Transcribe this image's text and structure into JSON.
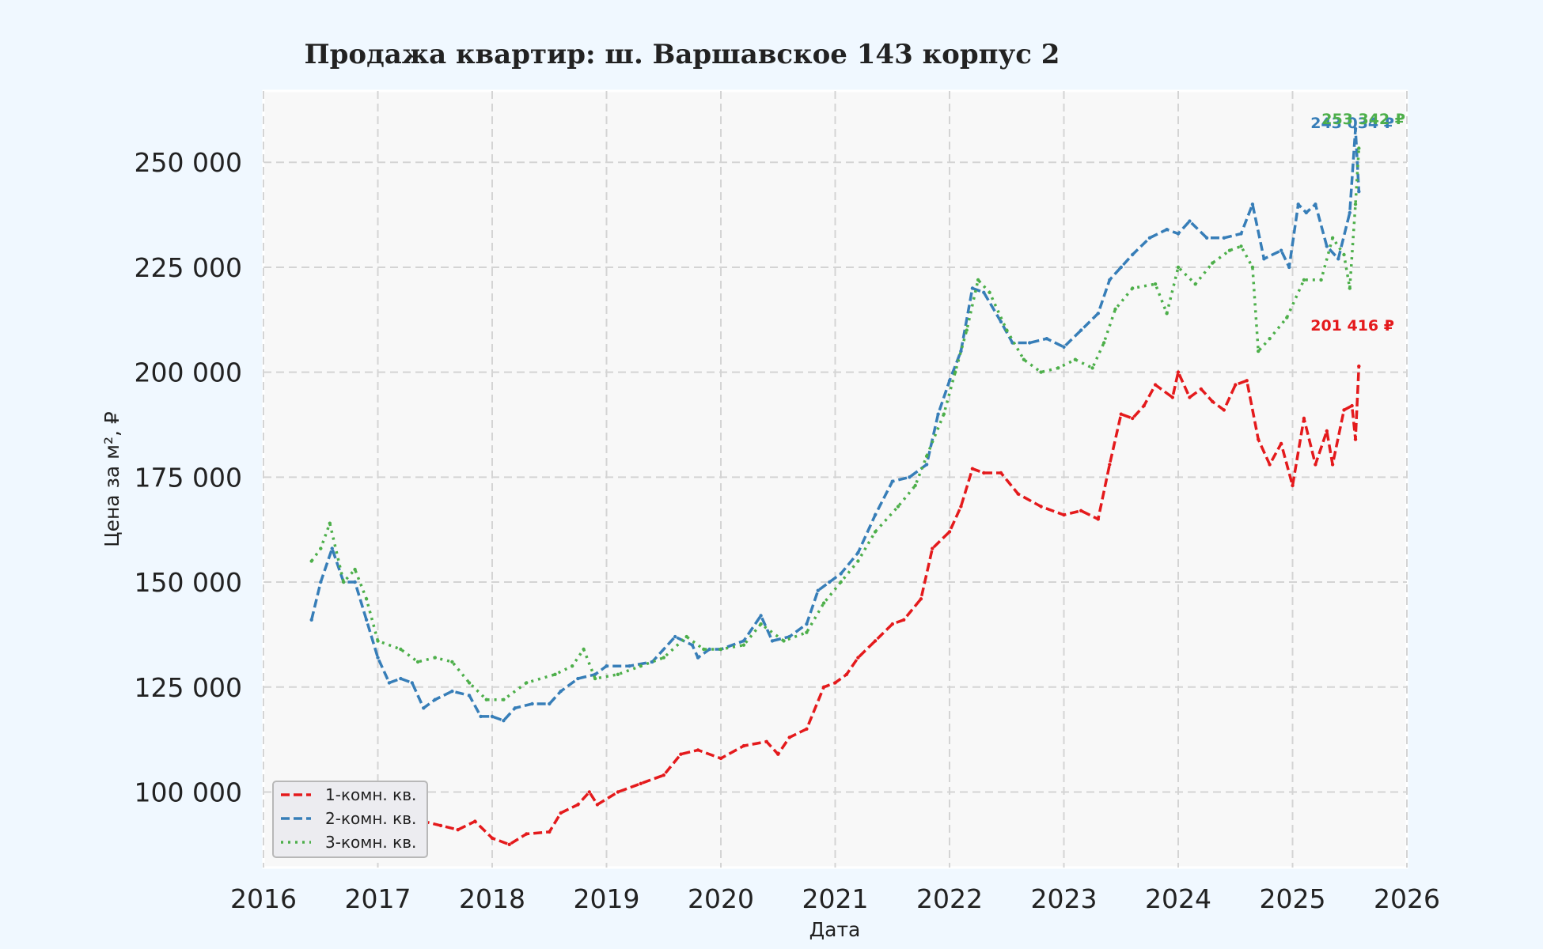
{
  "chart_data": {
    "type": "line",
    "title": "Продажа квартир: ш. Варшавское 143 корпус 2",
    "xlabel": "Дата",
    "ylabel": "Цена за м², ₽",
    "xlim": [
      2016,
      2026
    ],
    "ylim": [
      82000,
      267000
    ],
    "x_ticks": [
      "2016",
      "2017",
      "2018",
      "2019",
      "2020",
      "2021",
      "2022",
      "2023",
      "2024",
      "2025",
      "2026"
    ],
    "y_ticks": [
      "100 000",
      "125 000",
      "150 000",
      "175 000",
      "200 000",
      "225 000",
      "250 000"
    ],
    "grid": true,
    "legend_position": "lower-left",
    "series": [
      {
        "name": "1-комн. кв.",
        "color": "#e41a1c",
        "style": "dashed",
        "end_label": "201 416 ₽",
        "points": [
          [
            2016.42,
            100000
          ],
          [
            2016.55,
            99000
          ],
          [
            2016.65,
            101000
          ],
          [
            2016.8,
            96000
          ],
          [
            2017.0,
            95000
          ],
          [
            2017.2,
            92000
          ],
          [
            2017.4,
            93000
          ],
          [
            2017.55,
            92000
          ],
          [
            2017.7,
            91000
          ],
          [
            2017.85,
            93000
          ],
          [
            2018.0,
            89000
          ],
          [
            2018.15,
            87500
          ],
          [
            2018.3,
            90000
          ],
          [
            2018.5,
            90500
          ],
          [
            2018.6,
            95000
          ],
          [
            2018.75,
            97000
          ],
          [
            2018.85,
            100000
          ],
          [
            2018.92,
            97000
          ],
          [
            2019.1,
            100000
          ],
          [
            2019.3,
            102000
          ],
          [
            2019.5,
            104000
          ],
          [
            2019.65,
            109000
          ],
          [
            2019.8,
            110000
          ],
          [
            2020.0,
            108000
          ],
          [
            2020.2,
            111000
          ],
          [
            2020.4,
            112000
          ],
          [
            2020.5,
            109000
          ],
          [
            2020.6,
            113000
          ],
          [
            2020.75,
            115000
          ],
          [
            2020.9,
            125000
          ],
          [
            2021.0,
            126000
          ],
          [
            2021.1,
            128000
          ],
          [
            2021.2,
            132000
          ],
          [
            2021.35,
            136000
          ],
          [
            2021.5,
            140000
          ],
          [
            2021.6,
            141000
          ],
          [
            2021.75,
            146000
          ],
          [
            2021.85,
            158000
          ],
          [
            2022.0,
            162000
          ],
          [
            2022.1,
            168000
          ],
          [
            2022.2,
            177000
          ],
          [
            2022.3,
            176000
          ],
          [
            2022.45,
            176000
          ],
          [
            2022.6,
            171000
          ],
          [
            2022.8,
            168000
          ],
          [
            2023.0,
            166000
          ],
          [
            2023.15,
            167000
          ],
          [
            2023.3,
            165000
          ],
          [
            2023.4,
            178000
          ],
          [
            2023.5,
            190000
          ],
          [
            2023.6,
            189000
          ],
          [
            2023.7,
            192000
          ],
          [
            2023.8,
            197000
          ],
          [
            2023.95,
            194000
          ],
          [
            2024.0,
            200000
          ],
          [
            2024.1,
            194000
          ],
          [
            2024.2,
            196000
          ],
          [
            2024.3,
            193000
          ],
          [
            2024.4,
            191000
          ],
          [
            2024.5,
            197000
          ],
          [
            2024.6,
            198000
          ],
          [
            2024.7,
            184000
          ],
          [
            2024.8,
            178000
          ],
          [
            2024.9,
            183000
          ],
          [
            2025.0,
            173000
          ],
          [
            2025.1,
            189000
          ],
          [
            2025.2,
            178000
          ],
          [
            2025.3,
            186000
          ],
          [
            2025.35,
            178000
          ],
          [
            2025.45,
            191000
          ],
          [
            2025.52,
            192000
          ],
          [
            2025.55,
            184000
          ],
          [
            2025.58,
            201416
          ]
        ]
      },
      {
        "name": "2-комн. кв.",
        "color": "#377eb8",
        "style": "dashed",
        "end_label": "243 034 ₽",
        "points": [
          [
            2016.42,
            141000
          ],
          [
            2016.5,
            150000
          ],
          [
            2016.6,
            158000
          ],
          [
            2016.7,
            150000
          ],
          [
            2016.8,
            150000
          ],
          [
            2016.9,
            141000
          ],
          [
            2017.0,
            132000
          ],
          [
            2017.1,
            126000
          ],
          [
            2017.2,
            127000
          ],
          [
            2017.3,
            126000
          ],
          [
            2017.4,
            120000
          ],
          [
            2017.5,
            122000
          ],
          [
            2017.65,
            124000
          ],
          [
            2017.8,
            123000
          ],
          [
            2017.9,
            118000
          ],
          [
            2018.0,
            118000
          ],
          [
            2018.1,
            117000
          ],
          [
            2018.2,
            120000
          ],
          [
            2018.35,
            121000
          ],
          [
            2018.5,
            121000
          ],
          [
            2018.6,
            124000
          ],
          [
            2018.75,
            127000
          ],
          [
            2018.9,
            128000
          ],
          [
            2019.0,
            130000
          ],
          [
            2019.2,
            130000
          ],
          [
            2019.4,
            131000
          ],
          [
            2019.6,
            137000
          ],
          [
            2019.75,
            135000
          ],
          [
            2019.8,
            132000
          ],
          [
            2019.9,
            134000
          ],
          [
            2020.0,
            134000
          ],
          [
            2020.2,
            136000
          ],
          [
            2020.35,
            142000
          ],
          [
            2020.45,
            136000
          ],
          [
            2020.6,
            137000
          ],
          [
            2020.75,
            140000
          ],
          [
            2020.85,
            148000
          ],
          [
            2020.95,
            150000
          ],
          [
            2021.05,
            152000
          ],
          [
            2021.2,
            157000
          ],
          [
            2021.35,
            166000
          ],
          [
            2021.5,
            174000
          ],
          [
            2021.65,
            175000
          ],
          [
            2021.8,
            178000
          ],
          [
            2021.9,
            190000
          ],
          [
            2022.0,
            198000
          ],
          [
            2022.1,
            205000
          ],
          [
            2022.2,
            220000
          ],
          [
            2022.3,
            219000
          ],
          [
            2022.45,
            212000
          ],
          [
            2022.55,
            207000
          ],
          [
            2022.7,
            207000
          ],
          [
            2022.85,
            208000
          ],
          [
            2023.0,
            206000
          ],
          [
            2023.15,
            210000
          ],
          [
            2023.3,
            214000
          ],
          [
            2023.4,
            222000
          ],
          [
            2023.5,
            225000
          ],
          [
            2023.6,
            228000
          ],
          [
            2023.75,
            232000
          ],
          [
            2023.9,
            234000
          ],
          [
            2024.0,
            233000
          ],
          [
            2024.1,
            236000
          ],
          [
            2024.25,
            232000
          ],
          [
            2024.4,
            232000
          ],
          [
            2024.55,
            233000
          ],
          [
            2024.65,
            240000
          ],
          [
            2024.75,
            227000
          ],
          [
            2024.9,
            229000
          ],
          [
            2024.97,
            225000
          ],
          [
            2025.05,
            240000
          ],
          [
            2025.12,
            238000
          ],
          [
            2025.2,
            240000
          ],
          [
            2025.3,
            230000
          ],
          [
            2025.4,
            227000
          ],
          [
            2025.5,
            238000
          ],
          [
            2025.55,
            258000
          ],
          [
            2025.58,
            243034
          ]
        ]
      },
      {
        "name": "3-комн. кв.",
        "color": "#4daf4a",
        "style": "dotted",
        "end_label": "253 342 ₽",
        "points": [
          [
            2016.42,
            155000
          ],
          [
            2016.5,
            158000
          ],
          [
            2016.58,
            164000
          ],
          [
            2016.7,
            150000
          ],
          [
            2016.8,
            153000
          ],
          [
            2016.9,
            146000
          ],
          [
            2017.0,
            136000
          ],
          [
            2017.2,
            134000
          ],
          [
            2017.35,
            131000
          ],
          [
            2017.5,
            132000
          ],
          [
            2017.65,
            131000
          ],
          [
            2017.8,
            126000
          ],
          [
            2017.95,
            122000
          ],
          [
            2018.1,
            122000
          ],
          [
            2018.3,
            126000
          ],
          [
            2018.55,
            128000
          ],
          [
            2018.7,
            130000
          ],
          [
            2018.8,
            134000
          ],
          [
            2018.9,
            127000
          ],
          [
            2019.1,
            128000
          ],
          [
            2019.3,
            130000
          ],
          [
            2019.5,
            132000
          ],
          [
            2019.7,
            137000
          ],
          [
            2019.85,
            134000
          ],
          [
            2020.0,
            134000
          ],
          [
            2020.2,
            135000
          ],
          [
            2020.35,
            140000
          ],
          [
            2020.55,
            136000
          ],
          [
            2020.75,
            138000
          ],
          [
            2020.9,
            145000
          ],
          [
            2021.05,
            150000
          ],
          [
            2021.2,
            155000
          ],
          [
            2021.35,
            162000
          ],
          [
            2021.55,
            168000
          ],
          [
            2021.7,
            173000
          ],
          [
            2021.8,
            180000
          ],
          [
            2021.95,
            190000
          ],
          [
            2022.05,
            200000
          ],
          [
            2022.15,
            210000
          ],
          [
            2022.25,
            222000
          ],
          [
            2022.35,
            219000
          ],
          [
            2022.5,
            210000
          ],
          [
            2022.65,
            203000
          ],
          [
            2022.8,
            200000
          ],
          [
            2022.95,
            201000
          ],
          [
            2023.1,
            203000
          ],
          [
            2023.25,
            201000
          ],
          [
            2023.35,
            207000
          ],
          [
            2023.45,
            215000
          ],
          [
            2023.6,
            220000
          ],
          [
            2023.8,
            221000
          ],
          [
            2023.9,
            214000
          ],
          [
            2024.0,
            225000
          ],
          [
            2024.15,
            221000
          ],
          [
            2024.3,
            226000
          ],
          [
            2024.45,
            229000
          ],
          [
            2024.55,
            230000
          ],
          [
            2024.65,
            225000
          ],
          [
            2024.7,
            205000
          ],
          [
            2024.8,
            208000
          ],
          [
            2024.95,
            213000
          ],
          [
            2025.1,
            222000
          ],
          [
            2025.25,
            222000
          ],
          [
            2025.35,
            232000
          ],
          [
            2025.45,
            228000
          ],
          [
            2025.5,
            220000
          ],
          [
            2025.55,
            240000
          ],
          [
            2025.58,
            253342
          ]
        ]
      }
    ]
  }
}
